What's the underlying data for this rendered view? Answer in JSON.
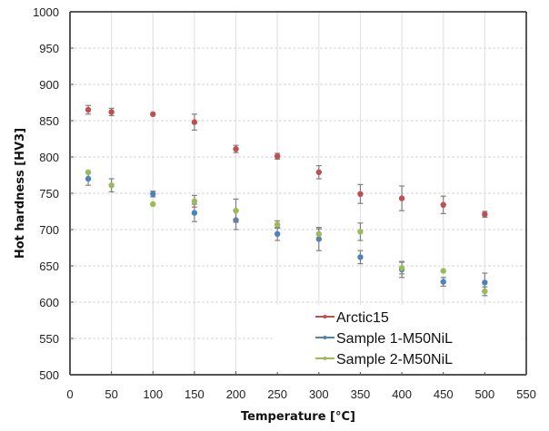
{
  "chart_data": {
    "type": "scatter",
    "title": "",
    "xlabel": "Temperature [°C]",
    "ylabel": "Hot hardness [HV3]",
    "xlim": [
      0,
      550
    ],
    "ylim": [
      500,
      1000
    ],
    "xticks": [
      "0",
      "50",
      "100",
      "150",
      "200",
      "250",
      "300",
      "350",
      "400",
      "450",
      "500",
      "550"
    ],
    "yticks": [
      "500",
      "550",
      "600",
      "650",
      "700",
      "750",
      "800",
      "850",
      "900",
      "950",
      "1000"
    ],
    "xtick_values": [
      0,
      50,
      100,
      150,
      200,
      250,
      300,
      350,
      400,
      450,
      500,
      550
    ],
    "ytick_values": [
      500,
      550,
      600,
      650,
      700,
      750,
      800,
      850,
      900,
      950,
      1000
    ],
    "grid": true,
    "legend_position": "bottom-right",
    "series": [
      {
        "name": "Arctic15",
        "color": "#C0504D",
        "x": [
          22,
          50,
          100,
          150,
          200,
          250,
          300,
          350,
          400,
          450,
          500
        ],
        "y": [
          865,
          862,
          859,
          848,
          811,
          801,
          779,
          749,
          743,
          734,
          721
        ],
        "err": [
          6,
          5,
          0,
          11,
          5,
          4,
          9,
          13,
          17,
          12,
          4
        ]
      },
      {
        "name": "Sample 1-M50NiL",
        "color": "#4F81BD",
        "x": [
          22,
          100,
          150,
          200,
          250,
          300,
          350,
          400,
          450,
          500
        ],
        "y": [
          770,
          749,
          723,
          713,
          694,
          687,
          662,
          645,
          628,
          627
        ],
        "err": [
          9,
          4,
          12,
          13,
          9,
          16,
          9,
          11,
          6,
          13
        ]
      },
      {
        "name": "Sample 2-M50NiL",
        "color": "#9BBB59",
        "x": [
          22,
          50,
          100,
          150,
          200,
          250,
          300,
          350,
          400,
          450,
          500
        ],
        "y": [
          779,
          761,
          735,
          739,
          726,
          707,
          694,
          697,
          647,
          643,
          615
        ],
        "err": [
          0,
          9,
          0,
          8,
          16,
          5,
          7,
          12,
          8,
          0,
          6
        ]
      }
    ]
  }
}
